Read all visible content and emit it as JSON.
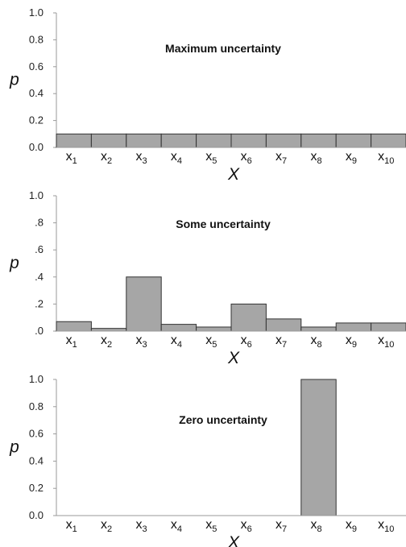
{
  "colors": {
    "bar_fill": "#a6a6a6",
    "bar_stroke": "#333333",
    "axis": "#9a9a9a",
    "background": "#ffffff"
  },
  "chart_data": [
    {
      "type": "bar",
      "title": "Maximum uncertainty",
      "xlabel": "X",
      "ylabel": "p",
      "ylim": [
        0,
        1.0
      ],
      "yticks": [
        "0.0",
        "0.2",
        "0.4",
        "0.6",
        "0.8",
        "1.0"
      ],
      "categories": [
        "x1",
        "x2",
        "x3",
        "x4",
        "x5",
        "x6",
        "x7",
        "x8",
        "x9",
        "x10"
      ],
      "values": [
        0.1,
        0.1,
        0.1,
        0.1,
        0.1,
        0.1,
        0.1,
        0.1,
        0.1,
        0.1
      ]
    },
    {
      "type": "bar",
      "title": "Some uncertainty",
      "xlabel": "X",
      "ylabel": "p",
      "ylim": [
        0,
        1.0
      ],
      "yticks": [
        ".0",
        ".2",
        ".4",
        ".6",
        ".8",
        "1.0"
      ],
      "categories": [
        "x1",
        "x2",
        "x3",
        "x4",
        "x5",
        "x6",
        "x7",
        "x8",
        "x9",
        "x10"
      ],
      "values": [
        0.07,
        0.02,
        0.4,
        0.05,
        0.03,
        0.2,
        0.09,
        0.03,
        0.06,
        0.06
      ]
    },
    {
      "type": "bar",
      "title": "Zero uncertainty",
      "xlabel": "X",
      "ylabel": "p",
      "ylim": [
        0,
        1.0
      ],
      "yticks": [
        "0.0",
        "0.2",
        "0.4",
        "0.6",
        "0.8",
        "1.0"
      ],
      "categories": [
        "x1",
        "x2",
        "x3",
        "x4",
        "x5",
        "x6",
        "x7",
        "x8",
        "x9",
        "x10"
      ],
      "values": [
        0,
        0,
        0,
        0,
        0,
        0,
        0,
        1.0,
        0,
        0
      ]
    }
  ]
}
